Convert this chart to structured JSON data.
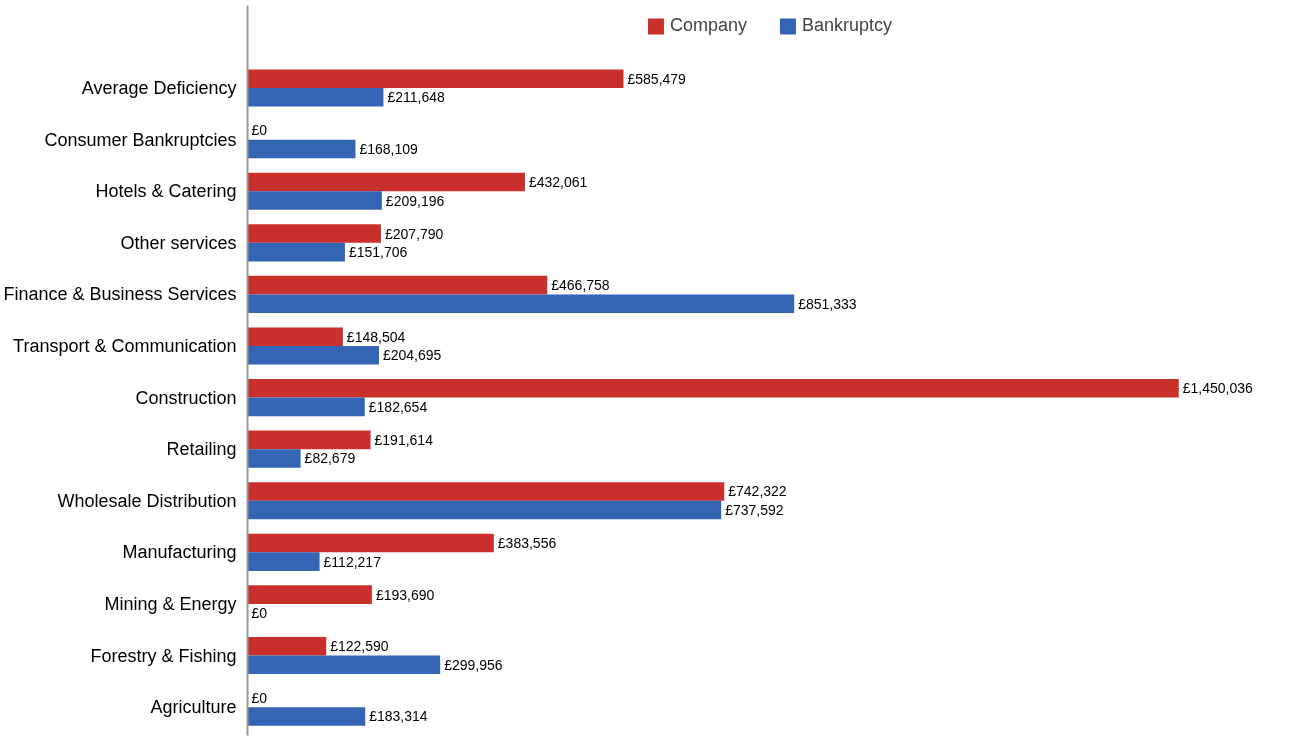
{
  "chart_data": {
    "type": "bar",
    "orientation": "horizontal",
    "legend": "top",
    "categories": [
      "Average Deficiency",
      "Consumer Bankruptcies",
      "Hotels & Catering",
      "Other services",
      "Finance & Business Services",
      "Transport & Communication",
      "Construction",
      "Retailing",
      "Wholesale Distribution",
      "Manufacturing",
      "Mining & Energy",
      "Forestry & Fishing",
      "Agriculture"
    ],
    "series": [
      {
        "name": "Company",
        "color": "#c9302c",
        "values": [
          585479,
          0,
          432061,
          207790,
          466758,
          148504,
          1450036,
          191614,
          742322,
          383556,
          193690,
          122590,
          0
        ],
        "value_labels": [
          "£585,479",
          "£0",
          "£432,061",
          "£207,790",
          "£466,758",
          "£148,504",
          "£1,450,036",
          "£191,614",
          "£742,322",
          "£383,556",
          "£193,690",
          "£122,590",
          "£0"
        ]
      },
      {
        "name": "Bankruptcy",
        "color": "#3465b4",
        "values": [
          211648,
          168109,
          209196,
          151706,
          851333,
          204695,
          182654,
          82679,
          737592,
          112217,
          0,
          299956,
          183314
        ],
        "value_labels": [
          "£211,648",
          "£168,109",
          "£209,196",
          "£151,706",
          "£851,333",
          "£204,695",
          "£182,654",
          "£82,679",
          "£737,592",
          "£112,217",
          "£0",
          "£299,956",
          "£183,314"
        ]
      }
    ]
  }
}
